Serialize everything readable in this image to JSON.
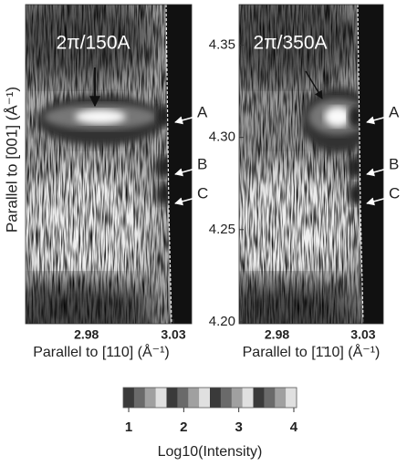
{
  "chart_data": [
    {
      "type": "heatmap",
      "annotation": "2π/150A",
      "xlabel": "Parallel to [110] (Å⁻¹)",
      "ylabel": "Parallel to [001] (Å⁻¹)",
      "xlim": [
        2.945,
        3.0405
      ],
      "ylim": [
        4.199,
        4.372
      ],
      "xticks": [
        2.98,
        3.03
      ],
      "peak_labels": [
        "A",
        "B",
        "C"
      ]
    },
    {
      "type": "heatmap",
      "annotation": "2π/350A",
      "xlabel": "Parallel to [1̄10] (Å⁻¹)",
      "xlim": [
        2.958,
        3.0417
      ],
      "ylim": [
        4.199,
        4.372
      ],
      "xticks": [
        2.98,
        3.03
      ],
      "yticks": [
        {
          "value": 4.35,
          "label": "4.35"
        },
        {
          "value": 4.3,
          "label": "4.30"
        },
        4.25,
        {
          "value": 4.2,
          "label": "4.20"
        }
      ],
      "peak_labels": [
        "A",
        "B",
        "C"
      ]
    }
  ],
  "colorbar": {
    "clim": [
      0.9,
      4.05
    ],
    "ticks": [
      1,
      2,
      3,
      4
    ],
    "label": "Log10(Intensity)"
  }
}
